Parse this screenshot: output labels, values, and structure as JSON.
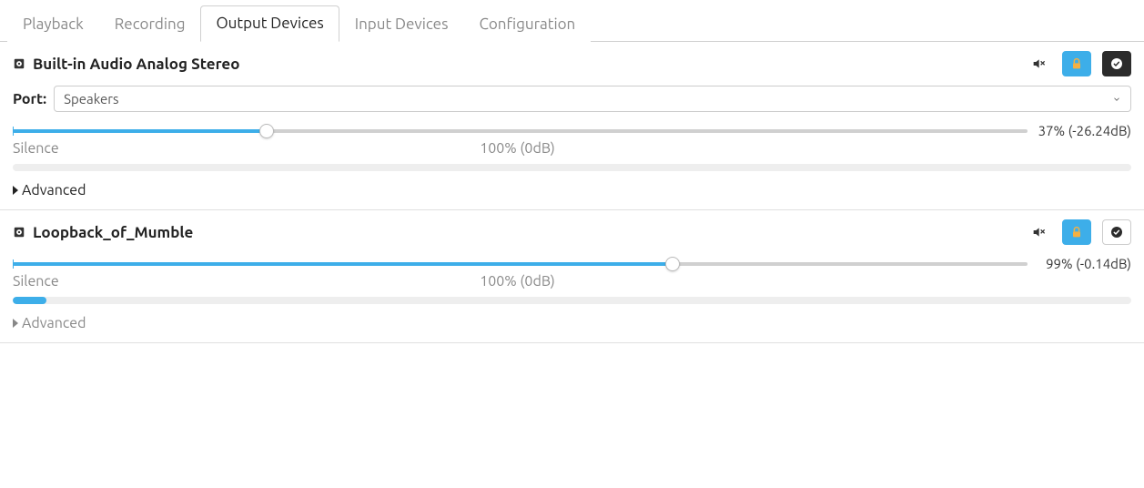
{
  "colors": {
    "accent": "#3daee9",
    "lock_yellow": "#f5b041",
    "tab_inactive": "#888888",
    "text": "#222222",
    "muted_text": "#888888",
    "border": "#d0d0d0",
    "rail": "#d0d0d0",
    "level_bg": "#eeeeee"
  },
  "tabs": [
    {
      "label": "Playback",
      "active": false
    },
    {
      "label": "Recording",
      "active": false
    },
    {
      "label": "Output Devices",
      "active": true
    },
    {
      "label": "Input Devices",
      "active": false
    },
    {
      "label": "Configuration",
      "active": false
    }
  ],
  "slider_labels": {
    "silence": "Silence",
    "center": "100% (0dB)"
  },
  "devices": [
    {
      "name": "Built-in Audio Analog Stereo",
      "has_port": true,
      "port_label": "Port:",
      "port_value": "Speakers",
      "volume_percent": 37,
      "slider_fill_percent": 25,
      "volume_readout": "37% (-26.24dB)",
      "level_percent": 0,
      "advanced_label": "Advanced",
      "advanced_muted": false,
      "mute_active": false,
      "lock_active": true,
      "fallback_active": true,
      "fallback_dark": true
    },
    {
      "name": "Loopback_of_Mumble",
      "has_port": false,
      "volume_percent": 99,
      "slider_fill_percent": 65,
      "volume_readout": "99% (-0.14dB)",
      "level_percent": 3,
      "advanced_label": "Advanced",
      "advanced_muted": true,
      "mute_active": false,
      "lock_active": true,
      "fallback_active": false,
      "fallback_dark": false
    }
  ]
}
